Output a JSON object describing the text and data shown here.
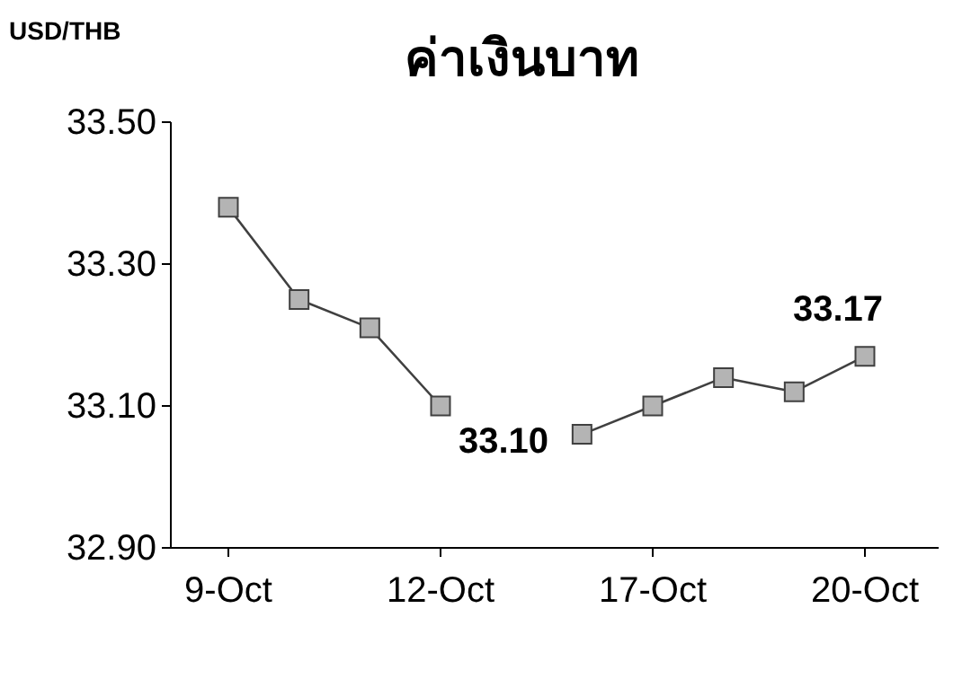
{
  "chart_data": {
    "type": "line",
    "title": "ค่าเงินบาท",
    "ylabel": "USD/THB",
    "categories": [
      "9-Oct",
      null,
      null,
      "12-Oct",
      null,
      null,
      "17-Oct",
      null,
      null,
      "20-Oct"
    ],
    "series": [
      {
        "color": "#404040",
        "values": [
          33.38,
          33.25,
          33.21,
          33.1,
          null,
          33.06,
          33.1,
          33.14,
          33.12,
          33.17
        ],
        "value_labels": [
          null,
          null,
          null,
          "33.10",
          null,
          null,
          null,
          null,
          null,
          "33.17"
        ]
      }
    ],
    "ylim": [
      32.9,
      33.5
    ],
    "yticks": [
      {
        "value": 32.9,
        "label": "32.90"
      },
      {
        "value": 33.1,
        "label": "33.10"
      },
      {
        "value": 33.3,
        "label": "33.30"
      },
      {
        "value": 33.5,
        "label": "33.50"
      }
    ],
    "grid": false,
    "marker": "square",
    "line_style": "solid"
  }
}
